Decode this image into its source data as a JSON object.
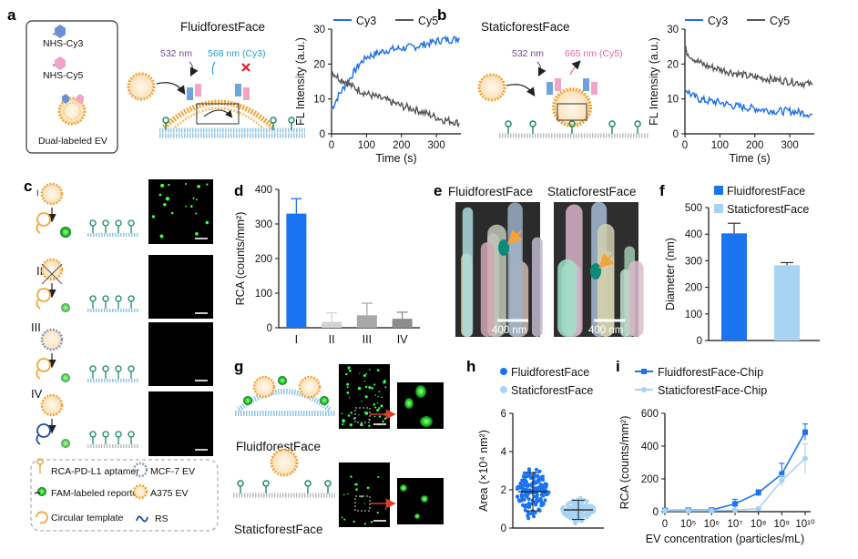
{
  "panels": {
    "a": "a",
    "b": "b",
    "c": "c",
    "d": "d",
    "e": "e",
    "f": "f",
    "g": "g",
    "h": "h",
    "i": "i"
  },
  "panel_a": {
    "legend_box": {
      "cy3": "NHS-Cy3",
      "cy5": "NHS-Cy5",
      "ev": "Dual-labeled EV"
    },
    "title": "FluidforestFace",
    "wl1": "532 nm",
    "wl2": "568 nm (Cy3)"
  },
  "panel_b": {
    "title": "StaticforestFace",
    "wl1": "532 nm",
    "wl2": "665 nm (Cy5)"
  },
  "panel_c": {
    "rows": [
      "I",
      "II",
      "III",
      "IV"
    ],
    "legend": {
      "aptamer": "RCA-PD-L1 aptamer",
      "mcf7": "MCF-7 EV",
      "reporter": "FAM-labeled reporter",
      "a375": "A375 EV",
      "template": "Circular template",
      "rs": "RS"
    }
  },
  "panel_e": {
    "left": "FluidforestFace",
    "right": "StaticforestFace",
    "scale": "400 nm",
    "scale2": "400 nm"
  },
  "panel_g": {
    "top": "FluidforestFace",
    "bottom": "StaticforestFace"
  },
  "colors": {
    "cy3": "#1f6fe8",
    "cy5": "#555555",
    "blue": "#1a73f0",
    "lightblue": "#a9d3f2",
    "grey": "#bdbdbd",
    "orange": "#f5a33c",
    "green": "#22cc33"
  },
  "chart_data": [
    {
      "id": "a",
      "type": "line",
      "xlabel": "Time (s)",
      "ylabel": "FL Intensity (a.u.)",
      "xlim": [
        0,
        370
      ],
      "ylim": [
        0,
        30
      ],
      "xticks": [
        0,
        100,
        200,
        300
      ],
      "yticks": [
        0,
        10,
        20,
        30
      ],
      "series": [
        {
          "name": "Cy3",
          "points": [
            [
              0,
              7
            ],
            [
              20,
              11
            ],
            [
              40,
              14
            ],
            [
              60,
              17
            ],
            [
              80,
              20
            ],
            [
              100,
              22
            ],
            [
              130,
              23
            ],
            [
              160,
              24
            ],
            [
              200,
              24.5
            ],
            [
              240,
              25
            ],
            [
              280,
              26
            ],
            [
              320,
              27
            ],
            [
              350,
              27
            ],
            [
              365,
              27.5
            ]
          ]
        },
        {
          "name": "Cy5",
          "points": [
            [
              0,
              18
            ],
            [
              20,
              16
            ],
            [
              40,
              15
            ],
            [
              60,
              13.5
            ],
            [
              80,
              12.5
            ],
            [
              100,
              11.5
            ],
            [
              130,
              10.5
            ],
            [
              160,
              9.5
            ],
            [
              200,
              8
            ],
            [
              240,
              7
            ],
            [
              280,
              5.5
            ],
            [
              320,
              4
            ],
            [
              350,
              3.5
            ],
            [
              365,
              3
            ]
          ]
        }
      ]
    },
    {
      "id": "b",
      "type": "line",
      "xlabel": "Time (s)",
      "ylabel": "FL Intensity (a.u.)",
      "xlim": [
        0,
        370
      ],
      "ylim": [
        0,
        30
      ],
      "xticks": [
        0,
        100,
        200,
        300
      ],
      "yticks": [
        0,
        10,
        20,
        30
      ],
      "series": [
        {
          "name": "Cy3",
          "points": [
            [
              0,
              13
            ],
            [
              20,
              11
            ],
            [
              40,
              10
            ],
            [
              60,
              9.5
            ],
            [
              100,
              9
            ],
            [
              140,
              8
            ],
            [
              180,
              7.5
            ],
            [
              220,
              7
            ],
            [
              260,
              6.5
            ],
            [
              300,
              6.5
            ],
            [
              340,
              6
            ],
            [
              365,
              5.5
            ]
          ]
        },
        {
          "name": "Cy5",
          "points": [
            [
              0,
              24
            ],
            [
              20,
              22
            ],
            [
              40,
              20.5
            ],
            [
              60,
              19.5
            ],
            [
              100,
              18.5
            ],
            [
              140,
              17.5
            ],
            [
              180,
              16.5
            ],
            [
              220,
              16
            ],
            [
              260,
              15.5
            ],
            [
              300,
              15
            ],
            [
              340,
              14.5
            ],
            [
              365,
              14
            ]
          ]
        }
      ]
    },
    {
      "id": "d",
      "type": "bar",
      "categories": [
        "I",
        "II",
        "III",
        "IV"
      ],
      "values": [
        330,
        17,
        36,
        26
      ],
      "errors": [
        43,
        26,
        35,
        19
      ],
      "ylabel": "RCA (counts/mm²)",
      "ylim": [
        0,
        400
      ],
      "yticks": [
        0,
        100,
        200,
        300,
        400
      ]
    },
    {
      "id": "f",
      "type": "bar",
      "categories": [
        "FluidforestFace",
        "StaticforestFace"
      ],
      "values": [
        403,
        283
      ],
      "errors": [
        38,
        10
      ],
      "ylabel": "Diameter (nm)",
      "ylim": [
        0,
        500
      ],
      "yticks": [
        0,
        100,
        200,
        300,
        400,
        500
      ]
    },
    {
      "id": "h",
      "type": "scatter",
      "ylabel": "Area (×10⁴ nm²)",
      "ylim": [
        0,
        6
      ],
      "yticks": [
        0,
        2,
        4,
        6
      ],
      "series": [
        {
          "name": "FluidforestFace",
          "mean": 1.9,
          "sd": 1.0,
          "n": 160,
          "max": 5.3
        },
        {
          "name": "StaticforestFace",
          "mean": 0.95,
          "sd": 0.5,
          "n": 160,
          "max": 2.8
        }
      ]
    },
    {
      "id": "i",
      "type": "line",
      "xlabel": "EV concentration (particles/mL)",
      "ylabel": "RCA (counts/mm²)",
      "ylim": [
        0,
        600
      ],
      "yticks": [
        0,
        200,
        400,
        600
      ],
      "xticks": [
        "0",
        "10⁵",
        "10⁶",
        "10⁷",
        "10⁸",
        "10⁹",
        "10¹⁰"
      ],
      "series": [
        {
          "name": "FluidforestFace-Chip",
          "values": [
            8,
            9,
            10,
            48,
            115,
            230,
            485
          ],
          "errors": [
            5,
            5,
            6,
            28,
            18,
            65,
            50
          ]
        },
        {
          "name": "StaticforestFace-Chip",
          "values": [
            6,
            6,
            6,
            10,
            18,
            190,
            325
          ],
          "errors": [
            4,
            4,
            4,
            5,
            6,
            30,
            90
          ]
        }
      ]
    }
  ]
}
